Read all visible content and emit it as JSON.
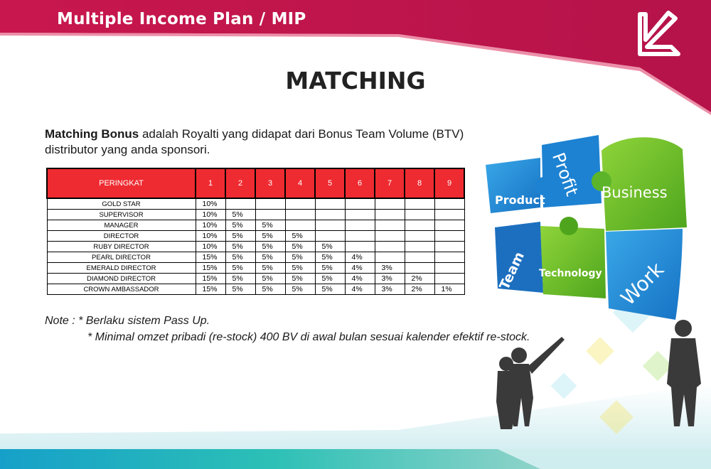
{
  "header": {
    "title": "Multiple Income Plan / MIP"
  },
  "page_title": "MATCHING",
  "intro": {
    "bold": "Matching Bonus",
    "line1_rest": " adalah Royalti yang didapat dari Bonus Team Volume (BTV)",
    "line2": "distributor yang anda sponsori."
  },
  "table": {
    "header_rank": "PERINGKAT",
    "levels": [
      "1",
      "2",
      "3",
      "4",
      "5",
      "6",
      "7",
      "8",
      "9"
    ],
    "rows": [
      {
        "rank": "GOLD STAR",
        "values": [
          "10%",
          "",
          "",
          "",
          "",
          "",
          "",
          "",
          ""
        ]
      },
      {
        "rank": "SUPERVISOR",
        "values": [
          "10%",
          "5%",
          "",
          "",
          "",
          "",
          "",
          "",
          ""
        ]
      },
      {
        "rank": "MANAGER",
        "values": [
          "10%",
          "5%",
          "5%",
          "",
          "",
          "",
          "",
          "",
          ""
        ]
      },
      {
        "rank": "DIRECTOR",
        "values": [
          "10%",
          "5%",
          "5%",
          "5%",
          "",
          "",
          "",
          "",
          ""
        ]
      },
      {
        "rank": "RUBY DIRECTOR",
        "values": [
          "10%",
          "5%",
          "5%",
          "5%",
          "5%",
          "",
          "",
          "",
          ""
        ]
      },
      {
        "rank": "PEARL DIRECTOR",
        "values": [
          "15%",
          "5%",
          "5%",
          "5%",
          "5%",
          "4%",
          "",
          "",
          ""
        ]
      },
      {
        "rank": "EMERALD DIRECTOR",
        "values": [
          "15%",
          "5%",
          "5%",
          "5%",
          "5%",
          "4%",
          "3%",
          "",
          ""
        ]
      },
      {
        "rank": "DIAMOND DIRECTOR",
        "values": [
          "15%",
          "5%",
          "5%",
          "5%",
          "5%",
          "4%",
          "3%",
          "2%",
          ""
        ]
      },
      {
        "rank": "CROWN AMBASSADOR",
        "values": [
          "15%",
          "5%",
          "5%",
          "5%",
          "5%",
          "4%",
          "3%",
          "2%",
          "1%"
        ]
      }
    ]
  },
  "note": {
    "line1": "Note  : * Berlaku sistem Pass Up.",
    "line2": "* Minimal omzet pribadi (re-stock) 400 BV di awal bulan sesuai kalender efektif re-stock."
  },
  "puzzle": {
    "pieces": [
      "Product",
      "Profit",
      "Business",
      "Team",
      "Technology",
      "Work"
    ]
  },
  "colors": {
    "brand": "#c8174e",
    "table_header": "#ee2b31",
    "accent_teal": "#1fb5b0"
  }
}
